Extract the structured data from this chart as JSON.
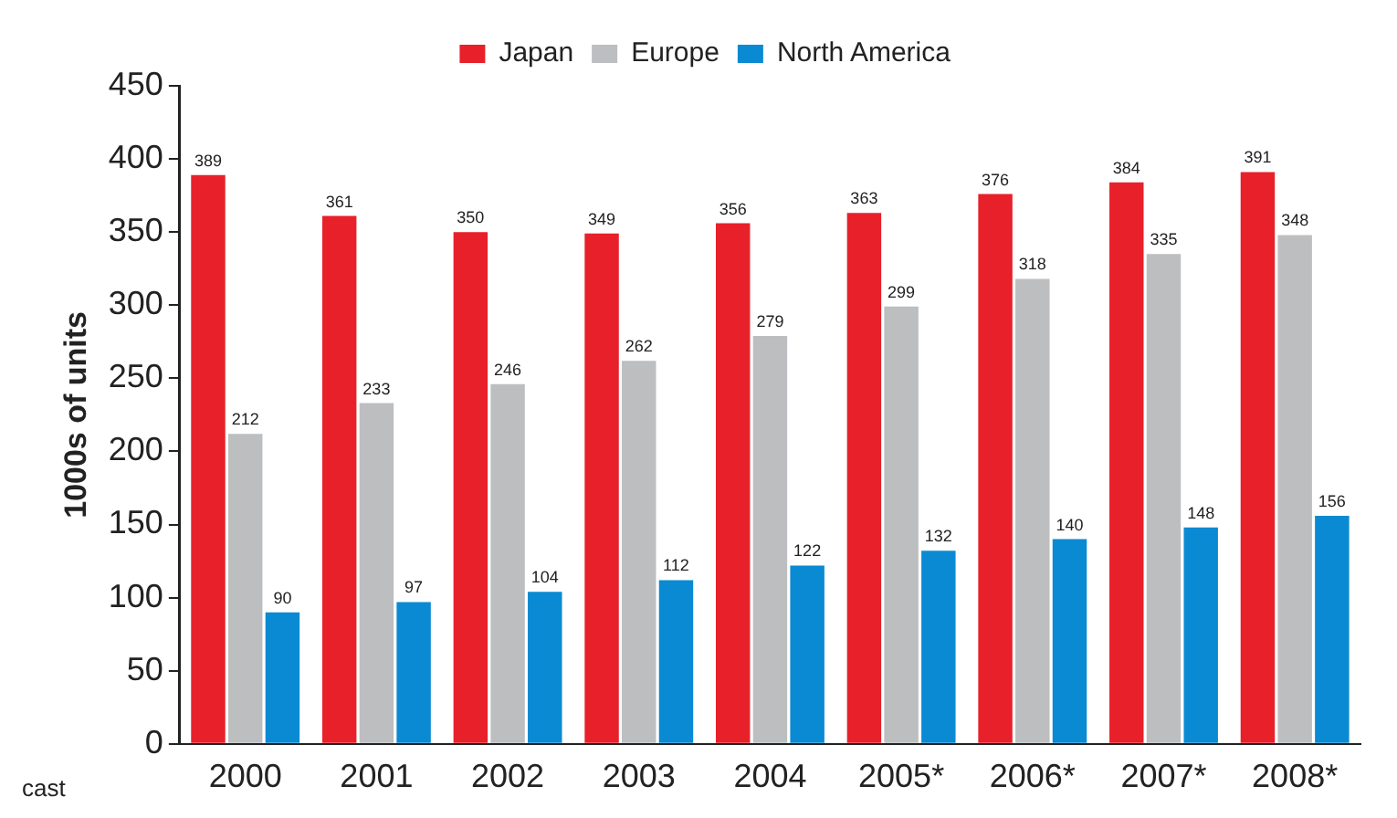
{
  "chart_data": {
    "type": "bar",
    "ylabel": "1000s of units",
    "categories": [
      "2000",
      "2001",
      "2002",
      "2003",
      "2004",
      "2005*",
      "2006*",
      "2007*",
      "2008*"
    ],
    "series": [
      {
        "name": "Japan",
        "color": "#e8202a",
        "values": [
          389,
          361,
          350,
          349,
          356,
          363,
          376,
          384,
          391
        ]
      },
      {
        "name": "Europe",
        "color": "#bcbec0",
        "values": [
          212,
          233,
          246,
          262,
          279,
          299,
          318,
          335,
          348
        ]
      },
      {
        "name": "North America",
        "color": "#0a8ad2",
        "values": [
          90,
          97,
          104,
          112,
          122,
          132,
          140,
          148,
          156
        ]
      }
    ],
    "ylim": [
      0,
      450
    ],
    "yticks": [
      0,
      50,
      100,
      150,
      200,
      250,
      300,
      350,
      400,
      450
    ],
    "grid": false,
    "legend": "top",
    "data_labels": true,
    "annotations": [
      "cast"
    ]
  }
}
